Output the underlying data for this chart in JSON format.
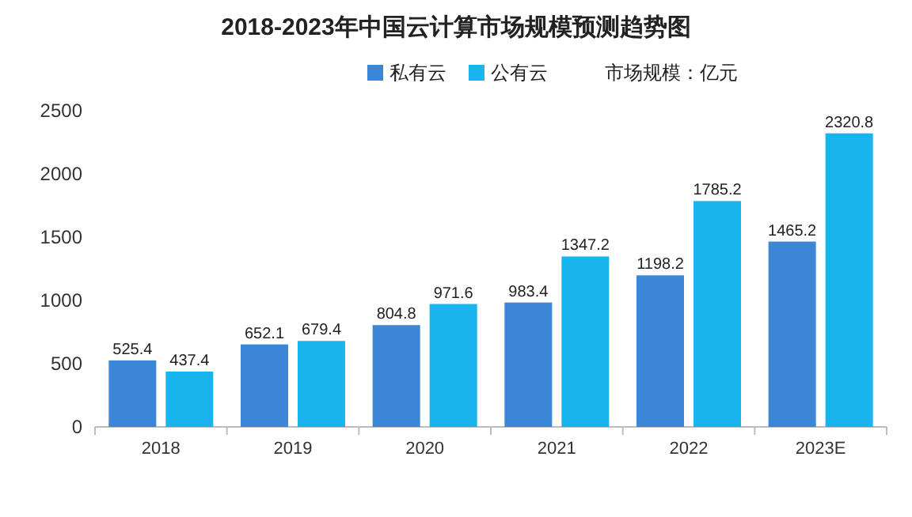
{
  "chart_data": {
    "type": "bar",
    "title": "2018-2023年中国云计算市场规模预测趋势图",
    "categories": [
      "2018",
      "2019",
      "2020",
      "2021",
      "2022",
      "2023E"
    ],
    "series": [
      {
        "name": "私有云",
        "color": "#3b86d6",
        "values": [
          525.4,
          652.1,
          804.8,
          983.4,
          1198.2,
          1465.2
        ]
      },
      {
        "name": "公有云",
        "color": "#18b4ee",
        "values": [
          437.4,
          679.4,
          971.6,
          1347.2,
          1785.2,
          2320.8
        ]
      }
    ],
    "ylim": [
      0,
      2500
    ],
    "yticks": [
      0,
      500,
      1000,
      1500,
      2000,
      2500
    ],
    "data_labels": true,
    "legend": "top",
    "grid": false,
    "annotations": [
      "市场规模：亿元"
    ]
  }
}
